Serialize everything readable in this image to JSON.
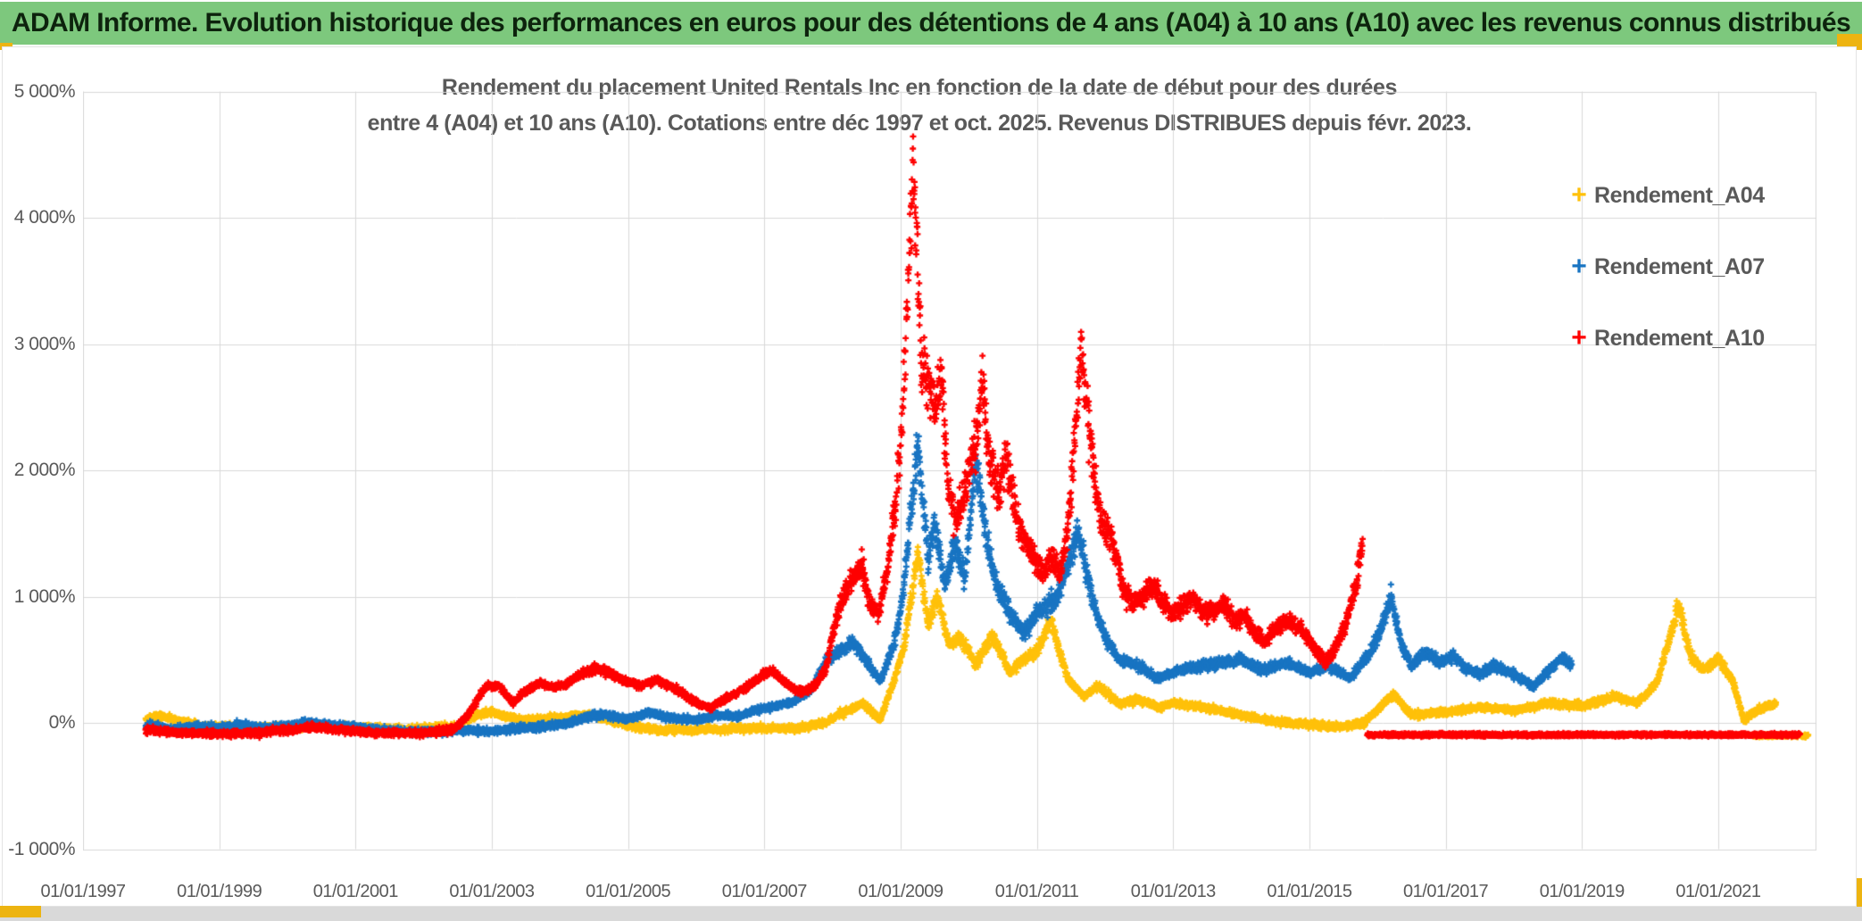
{
  "header": {
    "title": "ADAM Informe. Evolution historique des performances en euros pour des détentions de 4 ans (A04) à 10 ans (A10) avec les revenus connus distribués",
    "bg_color": "#7dc87d",
    "accent_color": "#edb411"
  },
  "chart_data": {
    "type": "scatter",
    "title_line1": "Rendement du placement United Rentals Inc en fonction de la date de début pour des durées",
    "title_line2": "entre 4 (A04) et 10 ans (A10). Cotations entre déc 1997 et oct. 2025. Revenus DISTRIBUES depuis févr. 2023.",
    "marker": "plus",
    "grid": true,
    "axis_text_color": "#595959",
    "grid_color": "#d9d9d9",
    "ylim": [
      -1000,
      5000
    ],
    "x_range_years": [
      1997,
      2022.45
    ],
    "y_ticks": [
      {
        "label": "5 000%",
        "value": 5000
      },
      {
        "label": "4 000%",
        "value": 4000
      },
      {
        "label": "3 000%",
        "value": 3000
      },
      {
        "label": "2 000%",
        "value": 2000
      },
      {
        "label": "1 000%",
        "value": 1000
      },
      {
        "label": "0%",
        "value": 0
      },
      {
        "label": "-1 000%",
        "value": -1000
      }
    ],
    "x_ticks": [
      {
        "label": "01/01/1997",
        "year": 1997
      },
      {
        "label": "01/01/1999",
        "year": 1999
      },
      {
        "label": "01/01/2001",
        "year": 2001
      },
      {
        "label": "01/01/2003",
        "year": 2003
      },
      {
        "label": "01/01/2005",
        "year": 2005
      },
      {
        "label": "01/01/2007",
        "year": 2007
      },
      {
        "label": "01/01/2009",
        "year": 2009
      },
      {
        "label": "01/01/2011",
        "year": 2011
      },
      {
        "label": "01/01/2013",
        "year": 2013
      },
      {
        "label": "01/01/2015",
        "year": 2015
      },
      {
        "label": "01/01/2017",
        "year": 2017
      },
      {
        "label": "01/01/2019",
        "year": 2019
      },
      {
        "label": "01/01/2021",
        "year": 2021
      }
    ],
    "legend": [
      {
        "label": "Rendement_A04",
        "color": "#ffc10a"
      },
      {
        "label": "Rendement_A07",
        "color": "#1874c2"
      },
      {
        "label": "Rendement_A10",
        "color": "#fe0000"
      }
    ],
    "series": [
      {
        "name": "Rendement_A04",
        "color": "#ffc10a",
        "anchors": [
          [
            1997.92,
            30
          ],
          [
            1998.15,
            55
          ],
          [
            1998.4,
            15
          ],
          [
            1998.7,
            -25
          ],
          [
            1999,
            -30
          ],
          [
            1999.5,
            -40
          ],
          [
            2000,
            -35
          ],
          [
            2000.5,
            -20
          ],
          [
            2000.9,
            -35
          ],
          [
            2001.5,
            -50
          ],
          [
            2002,
            -45
          ],
          [
            2002.5,
            -25
          ],
          [
            2002.7,
            55
          ],
          [
            2003,
            85
          ],
          [
            2003.4,
            25
          ],
          [
            2004,
            40
          ],
          [
            2004.5,
            60
          ],
          [
            2004.8,
            10
          ],
          [
            2005.1,
            -35
          ],
          [
            2005.5,
            -60
          ],
          [
            2006,
            -55
          ],
          [
            2006.5,
            -50
          ],
          [
            2007,
            -40
          ],
          [
            2007.5,
            -45
          ],
          [
            2007.9,
            0
          ],
          [
            2008.1,
            70
          ],
          [
            2008.45,
            150
          ],
          [
            2008.7,
            25
          ],
          [
            2008.9,
            330
          ],
          [
            2009.05,
            600
          ],
          [
            2009.25,
            1350
          ],
          [
            2009.4,
            800
          ],
          [
            2009.55,
            1000
          ],
          [
            2009.7,
            620
          ],
          [
            2009.9,
            660
          ],
          [
            2010.1,
            460
          ],
          [
            2010.35,
            700
          ],
          [
            2010.6,
            400
          ],
          [
            2010.8,
            500
          ],
          [
            2011,
            560
          ],
          [
            2011.2,
            820
          ],
          [
            2011.45,
            350
          ],
          [
            2011.7,
            200
          ],
          [
            2011.9,
            300
          ],
          [
            2012.2,
            150
          ],
          [
            2012.5,
            185
          ],
          [
            2012.8,
            120
          ],
          [
            2013,
            155
          ],
          [
            2013.5,
            120
          ],
          [
            2014,
            60
          ],
          [
            2014.5,
            10
          ],
          [
            2015,
            -10
          ],
          [
            2015.4,
            -35
          ],
          [
            2015.8,
            0
          ],
          [
            2016.1,
            160
          ],
          [
            2016.25,
            220
          ],
          [
            2016.5,
            60
          ],
          [
            2017,
            85
          ],
          [
            2017.5,
            125
          ],
          [
            2018,
            100
          ],
          [
            2018.5,
            155
          ],
          [
            2019,
            135
          ],
          [
            2019.5,
            210
          ],
          [
            2019.8,
            155
          ],
          [
            2020.1,
            320
          ],
          [
            2020.42,
            930
          ],
          [
            2020.6,
            520
          ],
          [
            2020.8,
            420
          ],
          [
            2021,
            510
          ],
          [
            2021.2,
            350
          ],
          [
            2021.38,
            20
          ],
          [
            2021.6,
            110
          ],
          [
            2021.85,
            150
          ]
        ],
        "flat_segment": {
          "from": 2021.5,
          "to": 2022.32,
          "value": -100
        }
      },
      {
        "name": "Rendement_A07",
        "color": "#1874c2",
        "anchors": [
          [
            1997.92,
            -15
          ],
          [
            1998.3,
            -50
          ],
          [
            1998.6,
            -30
          ],
          [
            1999,
            -40
          ],
          [
            1999.3,
            -15
          ],
          [
            1999.6,
            -40
          ],
          [
            2000,
            -25
          ],
          [
            2000.3,
            5
          ],
          [
            2000.6,
            -15
          ],
          [
            2001,
            -35
          ],
          [
            2001.4,
            -60
          ],
          [
            2001.8,
            -70
          ],
          [
            2002.2,
            -70
          ],
          [
            2002.6,
            -60
          ],
          [
            2003,
            -65
          ],
          [
            2003.5,
            -40
          ],
          [
            2004,
            -15
          ],
          [
            2004.3,
            30
          ],
          [
            2004.6,
            65
          ],
          [
            2005,
            30
          ],
          [
            2005.3,
            80
          ],
          [
            2005.6,
            40
          ],
          [
            2006,
            20
          ],
          [
            2006.3,
            60
          ],
          [
            2006.6,
            50
          ],
          [
            2007,
            120
          ],
          [
            2007.4,
            160
          ],
          [
            2007.7,
            260
          ],
          [
            2007.9,
            500
          ],
          [
            2008.1,
            560
          ],
          [
            2008.3,
            640
          ],
          [
            2008.5,
            490
          ],
          [
            2008.7,
            330
          ],
          [
            2008.9,
            620
          ],
          [
            2009.02,
            950
          ],
          [
            2009.15,
            1650
          ],
          [
            2009.25,
            2200
          ],
          [
            2009.4,
            1300
          ],
          [
            2009.5,
            1600
          ],
          [
            2009.65,
            1100
          ],
          [
            2009.8,
            1400
          ],
          [
            2009.95,
            1150
          ],
          [
            2010.1,
            2100
          ],
          [
            2010.25,
            1500
          ],
          [
            2010.4,
            1100
          ],
          [
            2010.6,
            880
          ],
          [
            2010.8,
            700
          ],
          [
            2011,
            860
          ],
          [
            2011.3,
            1000
          ],
          [
            2011.6,
            1500
          ],
          [
            2011.9,
            800
          ],
          [
            2012.2,
            500
          ],
          [
            2012.5,
            450
          ],
          [
            2012.8,
            350
          ],
          [
            2013,
            400
          ],
          [
            2013.5,
            460
          ],
          [
            2014,
            500
          ],
          [
            2014.3,
            420
          ],
          [
            2014.7,
            470
          ],
          [
            2015,
            400
          ],
          [
            2015.3,
            450
          ],
          [
            2015.6,
            350
          ],
          [
            2015.9,
            560
          ],
          [
            2016.1,
            820
          ],
          [
            2016.2,
            1000
          ],
          [
            2016.35,
            620
          ],
          [
            2016.5,
            450
          ],
          [
            2016.7,
            560
          ],
          [
            2016.9,
            480
          ],
          [
            2017.1,
            530
          ],
          [
            2017.3,
            430
          ],
          [
            2017.5,
            380
          ],
          [
            2017.7,
            460
          ],
          [
            2017.9,
            410
          ],
          [
            2018.1,
            350
          ],
          [
            2018.3,
            290
          ],
          [
            2018.5,
            410
          ],
          [
            2018.7,
            510
          ],
          [
            2018.85,
            460
          ]
        ],
        "flat_segment": null
      },
      {
        "name": "Rendement_A10",
        "color": "#fe0000",
        "anchors": [
          [
            1997.92,
            -55
          ],
          [
            1998.5,
            -80
          ],
          [
            1999,
            -85
          ],
          [
            1999.5,
            -80
          ],
          [
            2000,
            -60
          ],
          [
            2000.4,
            -35
          ],
          [
            2000.8,
            -55
          ],
          [
            2001.3,
            -80
          ],
          [
            2002,
            -80
          ],
          [
            2002.45,
            -50
          ],
          [
            2002.65,
            60
          ],
          [
            2002.9,
            280
          ],
          [
            2003.1,
            300
          ],
          [
            2003.3,
            160
          ],
          [
            2003.5,
            250
          ],
          [
            2003.7,
            320
          ],
          [
            2003.9,
            280
          ],
          [
            2004.1,
            310
          ],
          [
            2004.35,
            400
          ],
          [
            2004.55,
            430
          ],
          [
            2004.75,
            390
          ],
          [
            2005,
            320
          ],
          [
            2005.2,
            290
          ],
          [
            2005.4,
            340
          ],
          [
            2005.6,
            300
          ],
          [
            2005.8,
            230
          ],
          [
            2006,
            160
          ],
          [
            2006.2,
            120
          ],
          [
            2006.45,
            200
          ],
          [
            2006.7,
            270
          ],
          [
            2006.9,
            350
          ],
          [
            2007.1,
            420
          ],
          [
            2007.35,
            300
          ],
          [
            2007.55,
            240
          ],
          [
            2007.75,
            300
          ],
          [
            2007.9,
            420
          ],
          [
            2008,
            700
          ],
          [
            2008.15,
            1000
          ],
          [
            2008.3,
            1150
          ],
          [
            2008.42,
            1250
          ],
          [
            2008.55,
            950
          ],
          [
            2008.68,
            860
          ],
          [
            2008.8,
            1200
          ],
          [
            2008.92,
            1700
          ],
          [
            2009,
            2200
          ],
          [
            2009.08,
            3000
          ],
          [
            2009.14,
            3900
          ],
          [
            2009.18,
            4500
          ],
          [
            2009.24,
            3800
          ],
          [
            2009.3,
            2900
          ],
          [
            2009.4,
            2700
          ],
          [
            2009.5,
            2500
          ],
          [
            2009.6,
            2750
          ],
          [
            2009.7,
            1900
          ],
          [
            2009.8,
            1600
          ],
          [
            2009.9,
            1750
          ],
          [
            2010,
            2000
          ],
          [
            2010.1,
            2200
          ],
          [
            2010.2,
            2700
          ],
          [
            2010.3,
            2100
          ],
          [
            2010.45,
            1800
          ],
          [
            2010.55,
            2150
          ],
          [
            2010.7,
            1600
          ],
          [
            2010.85,
            1400
          ],
          [
            2011,
            1300
          ],
          [
            2011.1,
            1150
          ],
          [
            2011.2,
            1300
          ],
          [
            2011.35,
            1200
          ],
          [
            2011.45,
            1500
          ],
          [
            2011.55,
            2200
          ],
          [
            2011.65,
            3000
          ],
          [
            2011.75,
            2400
          ],
          [
            2011.85,
            1900
          ],
          [
            2011.95,
            1600
          ],
          [
            2012.1,
            1450
          ],
          [
            2012.25,
            1100
          ],
          [
            2012.4,
            950
          ],
          [
            2012.55,
            1000
          ],
          [
            2012.7,
            1100
          ],
          [
            2012.85,
            950
          ],
          [
            2013,
            850
          ],
          [
            2013.15,
            950
          ],
          [
            2013.3,
            1000
          ],
          [
            2013.45,
            850
          ],
          [
            2013.6,
            900
          ],
          [
            2013.75,
            950
          ],
          [
            2013.9,
            800
          ],
          [
            2014.05,
            850
          ],
          [
            2014.2,
            700
          ],
          [
            2014.35,
            650
          ],
          [
            2014.5,
            750
          ],
          [
            2014.65,
            820
          ],
          [
            2014.8,
            780
          ],
          [
            2014.95,
            700
          ],
          [
            2015.1,
            560
          ],
          [
            2015.25,
            480
          ],
          [
            2015.4,
            620
          ],
          [
            2015.55,
            820
          ],
          [
            2015.7,
            1150
          ],
          [
            2015.78,
            1450
          ]
        ],
        "flat_segment": {
          "from": 2015.85,
          "to": 2022.2,
          "value": -95
        }
      }
    ]
  }
}
